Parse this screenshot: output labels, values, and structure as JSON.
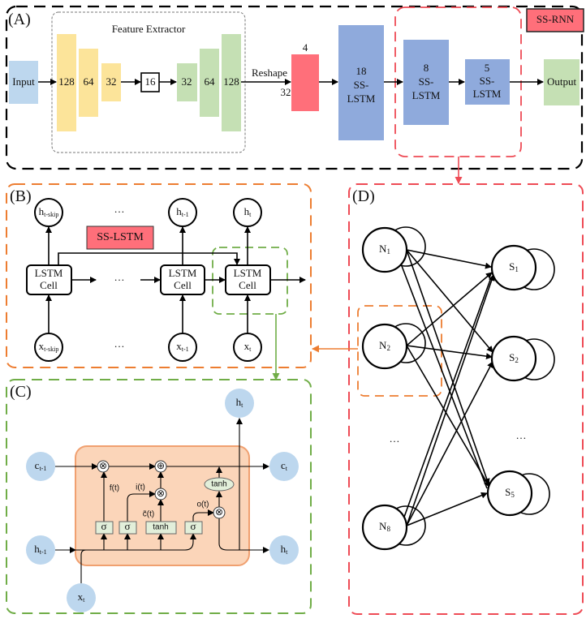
{
  "panel_a": {
    "label": "(A)",
    "feature_extractor_title": "Feature Extractor",
    "input": "Input",
    "encoder": [
      "128",
      "64",
      "32"
    ],
    "bottleneck": "16",
    "decoder": [
      "32",
      "64",
      "128"
    ],
    "reshape": "Reshape",
    "reshape_dim_top": "4",
    "reshape_dim_left": "32",
    "lstm_layers": [
      {
        "units": "18",
        "line1": "SS-",
        "line2": "LSTM"
      },
      {
        "units": "8",
        "line1": "SS-",
        "line2": "LSTM"
      },
      {
        "units": "5",
        "line1": "SS-",
        "line2": "LSTM"
      }
    ],
    "output": "Output",
    "badge": "SS-RNN"
  },
  "panel_b": {
    "label": "(B)",
    "badge": "SS-LSTM",
    "cell_line1": "LSTM",
    "cell_line2": "Cell",
    "ellipsis": "…",
    "outputs": [
      {
        "base": "h",
        "sub": "t-skip"
      },
      {
        "base": "h",
        "sub": "t-1"
      },
      {
        "base": "h",
        "sub": "t"
      }
    ],
    "inputs": [
      {
        "base": "x",
        "sub": "t-skip"
      },
      {
        "base": "x",
        "sub": "t-1"
      },
      {
        "base": "x",
        "sub": "t"
      }
    ]
  },
  "panel_c": {
    "label": "(C)",
    "c_prev": {
      "base": "c",
      "sub": "t-1"
    },
    "h_prev": {
      "base": "h",
      "sub": "t-1"
    },
    "x": {
      "base": "x",
      "sub": "t"
    },
    "c_next": {
      "base": "c",
      "sub": "t"
    },
    "h_next": {
      "base": "h",
      "sub": "t"
    },
    "h_out": {
      "base": "h",
      "sub": "t"
    },
    "sigma": "σ",
    "tanh": "tanh",
    "forget": "f(t)",
    "input_gate": "i(t)",
    "candidate": "c̃(t)",
    "output_gate": "o(t)",
    "times": "⊗",
    "plus": "⊕"
  },
  "panel_d": {
    "label": "(D)",
    "left_nodes": [
      {
        "base": "N",
        "sub": "1"
      },
      {
        "base": "N",
        "sub": "2"
      },
      {
        "base": "N",
        "sub": "8"
      }
    ],
    "right_nodes": [
      {
        "base": "S",
        "sub": "1"
      },
      {
        "base": "S",
        "sub": "2"
      },
      {
        "base": "S",
        "sub": "5"
      }
    ],
    "ellipsis": "…"
  },
  "colors": {
    "input_blue": "#bdd7ee",
    "encoder_yellow": "#fce49a",
    "decoder_green": "#c5e0b4",
    "reshape_red": "#ff6f7a",
    "lstm_blue": "#8faadc",
    "panel_a_border": "#000000",
    "panel_b_border": "#ed7d31",
    "panel_c_border": "#70ad47",
    "panel_d_border": "#ee4b55",
    "cell_fill": "#fbd5b9"
  }
}
